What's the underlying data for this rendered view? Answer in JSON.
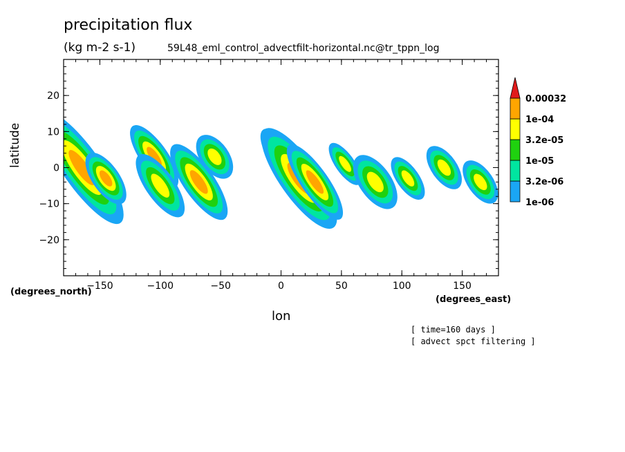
{
  "chart_data": {
    "type": "heatmap",
    "title": "precipitation flux",
    "units": "(kg m-2 s-1)",
    "source": "59L48_eml_control_advectfilt-horizontal.nc@tr_tppn_log",
    "xlabel": "lon",
    "ylabel": "latitude",
    "x_unit_label": "(degrees_east)",
    "y_unit_label": "(degrees_north)",
    "xlim": [
      -180,
      180
    ],
    "ylim": [
      -30,
      30
    ],
    "x_ticks": [
      -150,
      -100,
      -50,
      0,
      50,
      100,
      150
    ],
    "y_ticks": [
      -20,
      -10,
      0,
      10,
      20
    ],
    "grid": false,
    "legend_position": "right",
    "levels": [
      "1e-06",
      "3.2e-06",
      "1e-05",
      "3.2e-05",
      "1e-04",
      "0.00032"
    ],
    "level_colors": [
      "#1aa6f5",
      "#00e5a0",
      "#1fd10f",
      "#ffff00",
      "#ffa500",
      "#e11b1b"
    ],
    "annotations": [
      "[ time=160 days ]",
      "[ advect spct filtering ]"
    ],
    "features": [
      {
        "lon": -165,
        "lat": 0,
        "dlon": 10,
        "dlat": 9,
        "level": 4
      },
      {
        "lon": -145,
        "lat": -3,
        "dlon": 7,
        "dlat": 4,
        "level": 4
      },
      {
        "lon": -105,
        "lat": 3,
        "dlon": 7,
        "dlat": 5,
        "level": 4
      },
      {
        "lon": -100,
        "lat": -5,
        "dlon": 9,
        "dlat": 6,
        "level": 3
      },
      {
        "lon": -68,
        "lat": -4,
        "dlon": 8,
        "dlat": 6,
        "level": 4
      },
      {
        "lon": -55,
        "lat": 3,
        "dlon": 9,
        "dlat": 4,
        "level": 3
      },
      {
        "lon": 3,
        "lat": 2,
        "dlon": 7,
        "dlat": 5,
        "level": 4
      },
      {
        "lon": 15,
        "lat": -3,
        "dlon": 10,
        "dlat": 8,
        "level": 4
      },
      {
        "lon": 28,
        "lat": -4,
        "dlon": 7,
        "dlat": 6,
        "level": 4
      },
      {
        "lon": 53,
        "lat": 1,
        "dlon": 6,
        "dlat": 4,
        "level": 3
      },
      {
        "lon": 78,
        "lat": -4,
        "dlon": 10,
        "dlat": 5,
        "level": 3
      },
      {
        "lon": 105,
        "lat": -3,
        "dlon": 7,
        "dlat": 4,
        "level": 3
      },
      {
        "lon": 135,
        "lat": 0,
        "dlon": 8,
        "dlat": 4,
        "level": 3
      },
      {
        "lon": 165,
        "lat": -4,
        "dlon": 8,
        "dlat": 4,
        "level": 3
      }
    ]
  }
}
